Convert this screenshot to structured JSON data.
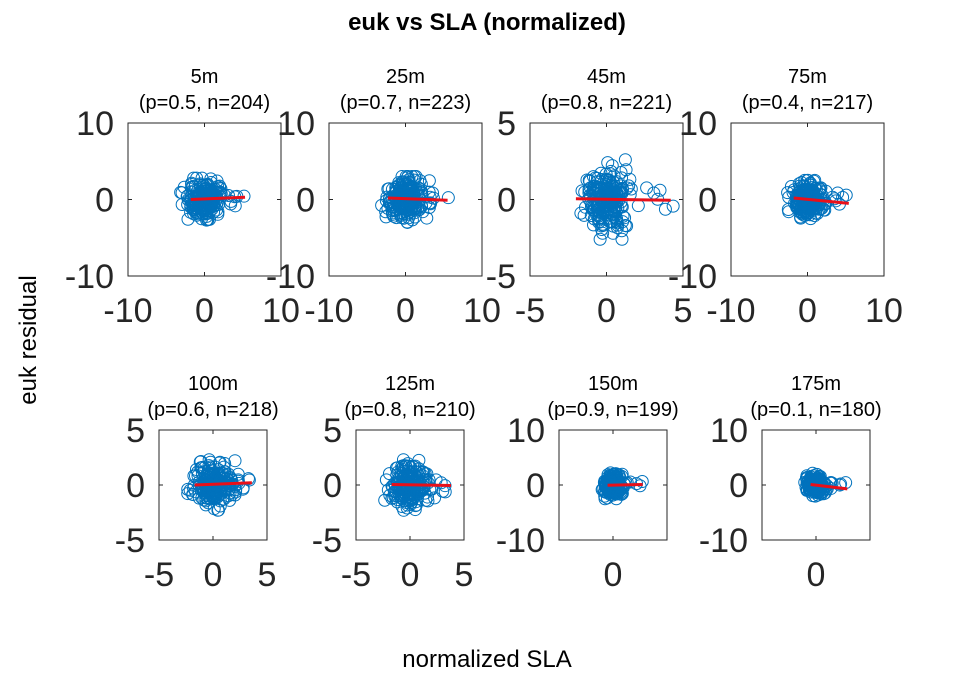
{
  "chart_data": {
    "type": "scatter",
    "title": "euk vs SLA (normalized)",
    "xlabel": "normalized SLA",
    "ylabel": "euk residual",
    "grid": false,
    "marker_color": "#0072BD",
    "fit_color": "#e8101a",
    "panels": [
      {
        "depth": "5m",
        "label": "(p=0.5, n=204)",
        "xlim": [
          -10,
          10
        ],
        "ylim": [
          -10,
          10
        ],
        "xticks": [
          "-10",
          "0",
          "10"
        ],
        "yticks": [
          "-10",
          "0",
          "10"
        ],
        "n": 204,
        "fit": {
          "x": [
            -1.8,
            5.3
          ],
          "y": [
            0.0,
            0.3
          ]
        },
        "spread": {
          "x": 1.2,
          "y": 1.3,
          "xmax": 5.2,
          "ymax": 2.8
        }
      },
      {
        "depth": "25m",
        "label": "(p=0.7, n=223)",
        "xlim": [
          -10,
          10
        ],
        "ylim": [
          -10,
          10
        ],
        "xticks": [
          "-10",
          "0",
          "10"
        ],
        "yticks": [
          "-10",
          "0",
          "10"
        ],
        "n": 223,
        "fit": {
          "x": [
            -2.3,
            5.5
          ],
          "y": [
            0.2,
            -0.1
          ]
        },
        "spread": {
          "x": 1.2,
          "y": 1.3,
          "xmax": 5.8,
          "ymax": 3.0
        }
      },
      {
        "depth": "45m",
        "label": "(p=0.8, n=221)",
        "xlim": [
          -5,
          5
        ],
        "ylim": [
          -5,
          5
        ],
        "xticks": [
          "-5",
          "0",
          "5"
        ],
        "yticks": [
          "-5",
          "0",
          "5"
        ],
        "n": 221,
        "fit": {
          "x": [
            -2.0,
            4.2
          ],
          "y": [
            0.05,
            -0.05
          ]
        },
        "spread": {
          "x": 0.8,
          "y": 1.0,
          "xmax": 4.5,
          "ymax": 2.6
        }
      },
      {
        "depth": "75m",
        "label": "(p=0.4, n=217)",
        "xlim": [
          -10,
          10
        ],
        "ylim": [
          -10,
          10
        ],
        "xticks": [
          "-10",
          "0",
          "10"
        ],
        "yticks": [
          "-10",
          "0",
          "10"
        ],
        "n": 217,
        "fit": {
          "x": [
            -1.8,
            5.4
          ],
          "y": [
            0.2,
            -0.5
          ]
        },
        "spread": {
          "x": 1.0,
          "y": 1.1,
          "xmax": 5.6,
          "ymax": 2.5
        }
      },
      {
        "depth": "100m",
        "label": "(p=0.6, n=218)",
        "xlim": [
          -5,
          5
        ],
        "ylim": [
          -5,
          5
        ],
        "xticks": [
          "-5",
          "0",
          "5"
        ],
        "yticks": [
          "-5",
          "0",
          "5"
        ],
        "n": 218,
        "fit": {
          "x": [
            -1.7,
            3.6
          ],
          "y": [
            0.0,
            0.2
          ]
        },
        "spread": {
          "x": 0.9,
          "y": 0.9,
          "xmax": 3.6,
          "ymax": 2.3
        }
      },
      {
        "depth": "125m",
        "label": "(p=0.8, n=210)",
        "xlim": [
          -5,
          5
        ],
        "ylim": [
          -5,
          5
        ],
        "xticks": [
          "-5",
          "0",
          "5"
        ],
        "yticks": [
          "-5",
          "0",
          "5"
        ],
        "n": 210,
        "fit": {
          "x": [
            -1.7,
            3.8
          ],
          "y": [
            0.05,
            -0.05
          ]
        },
        "spread": {
          "x": 0.9,
          "y": 0.9,
          "xmax": 3.8,
          "ymax": 2.3
        }
      },
      {
        "depth": "150m",
        "label": "(p=0.9, n=199)",
        "xlim": [
          -10,
          10
        ],
        "ylim": [
          -10,
          10
        ],
        "xticks": [
          "0"
        ],
        "yticks": [
          "-10",
          "0",
          "10"
        ],
        "n": 199,
        "fit": {
          "x": [
            -1.0,
            5.5
          ],
          "y": [
            -0.05,
            0.1
          ]
        },
        "spread": {
          "x": 0.8,
          "y": 1.0,
          "xmax": 5.5,
          "ymax": 2.5
        }
      },
      {
        "depth": "175m",
        "label": "(p=0.1, n=180)",
        "xlim": [
          -10,
          10
        ],
        "ylim": [
          -10,
          10
        ],
        "xticks": [
          "0"
        ],
        "yticks": [
          "-10",
          "0",
          "10"
        ],
        "n": 180,
        "fit": {
          "x": [
            -1.0,
            5.8
          ],
          "y": [
            0.1,
            -0.7
          ]
        },
        "spread": {
          "x": 0.8,
          "y": 0.9,
          "xmax": 5.8,
          "ymax": 2.4
        }
      }
    ]
  }
}
